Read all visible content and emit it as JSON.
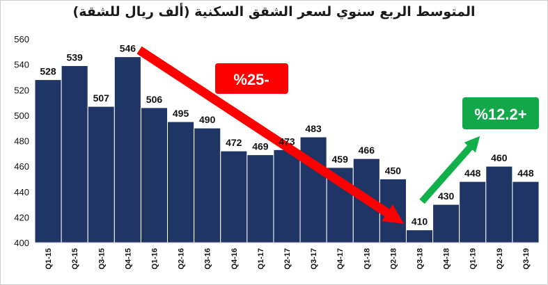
{
  "chart_data": {
    "type": "bar",
    "title": "المتوسط الربع سنوي لسعر الشقق السكنية (ألف ريال للشقة)",
    "xlabel": "",
    "ylabel": "",
    "categories": [
      "Q1-15",
      "Q2-15",
      "Q3-15",
      "Q4-15",
      "Q1-16",
      "Q2-16",
      "Q3-16",
      "Q4-16",
      "Q1-17",
      "Q2-17",
      "Q3-17",
      "Q4-17",
      "Q1-18",
      "Q2-18",
      "Q3-18",
      "Q4-18",
      "Q1-19",
      "Q2-19",
      "Q3-19"
    ],
    "values": [
      528,
      539,
      507,
      546,
      506,
      495,
      490,
      472,
      469,
      473,
      483,
      459,
      466,
      450,
      410,
      430,
      448,
      460,
      448
    ],
    "ylim": [
      400,
      560
    ],
    "yticks": [
      400,
      420,
      440,
      460,
      480,
      500,
      520,
      540,
      560
    ],
    "grid": false,
    "legend": "none",
    "annotations": [
      {
        "text": "%25-",
        "kind": "decline",
        "from": "Q4-15",
        "to": "Q3-18"
      },
      {
        "text": "%12.2+",
        "kind": "rise",
        "from": "Q3-18",
        "to": "Q2-19"
      }
    ],
    "colors": {
      "bar": "#1f3566",
      "bar_edge": "#ffffff",
      "decline_arrow": "#ff0000",
      "rise_arrow": "#12b04b",
      "decline_badge": "#ff0000",
      "rise_badge": "#12a84a"
    }
  }
}
